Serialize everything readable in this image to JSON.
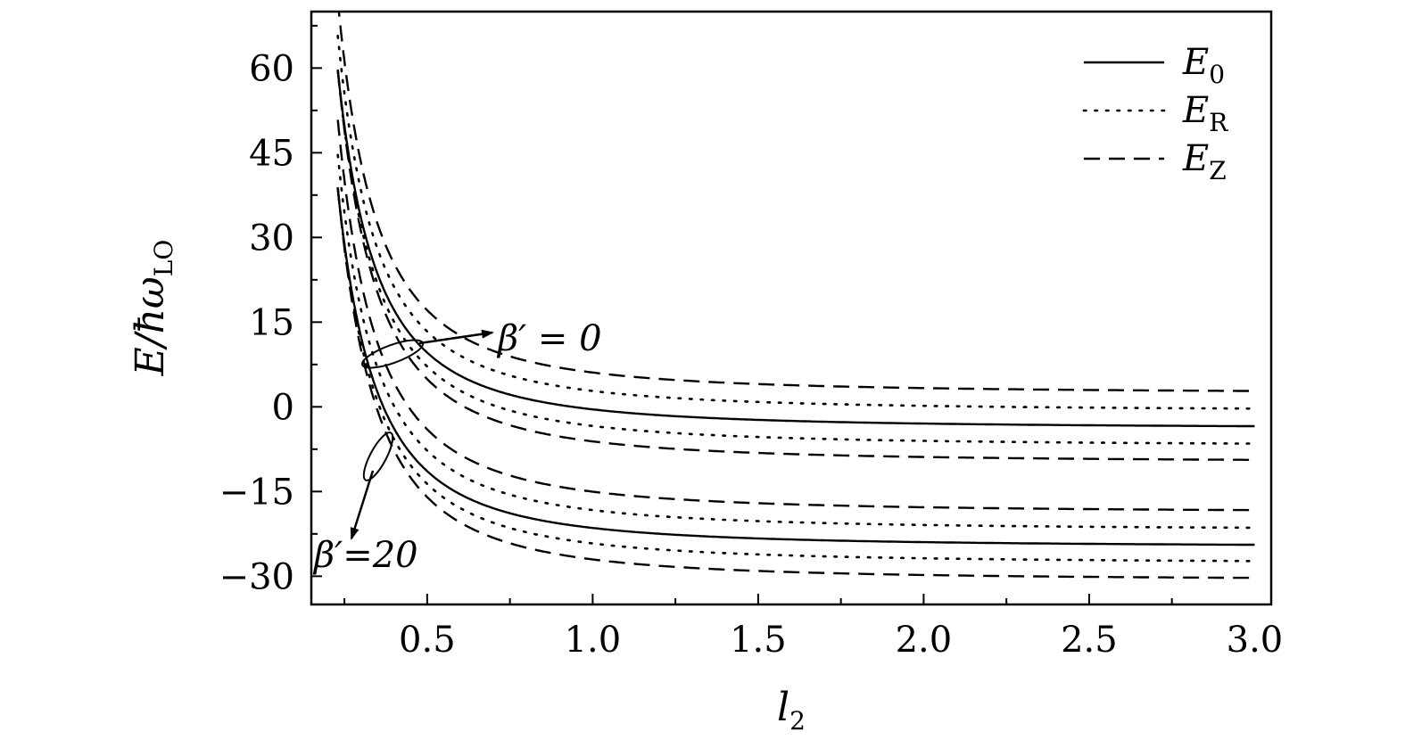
{
  "chart_data": {
    "type": "line",
    "xlabel": {
      "base": "l",
      "sub": "2"
    },
    "ylabel": {
      "base": "E/ħω",
      "sub": "LO"
    },
    "xlim": [
      0.15,
      3.05
    ],
    "ylim": [
      -35,
      70
    ],
    "xticks": [
      0.5,
      1.0,
      1.5,
      2.0,
      2.5,
      3.0
    ],
    "xtick_labels": [
      "0.5",
      "1.0",
      "1.5",
      "2.0",
      "2.5",
      "3.0"
    ],
    "yticks": [
      -30,
      -15,
      0,
      15,
      30,
      45,
      60
    ],
    "ytick_labels": [
      "−30",
      "−15",
      "0",
      "15",
      "30",
      "45",
      "60"
    ],
    "grid": false,
    "legend_position": "top-right",
    "legend": [
      {
        "base": "E",
        "sub": "0",
        "style": "solid"
      },
      {
        "base": "E",
        "sub": "R",
        "style": "dotted"
      },
      {
        "base": "E",
        "sub": "Z",
        "style": "dashed"
      }
    ],
    "annotations": [
      {
        "text": "β′ = 0",
        "target_x": 0.33,
        "target_y": 7
      },
      {
        "text": "β′=20",
        "target_x": 0.36,
        "target_y": -11
      }
    ],
    "curve_model": "E = asymptote + 0.76 × (amplitude / l2)^2, curves start at l2 = 0.23",
    "series": [
      {
        "group": "β′ = 0",
        "style": "dashed",
        "asymptote": 2.4,
        "amplitude": 2.2
      },
      {
        "group": "β′ = 0",
        "style": "dotted",
        "asymptote": -0.7,
        "amplitude": 2.15
      },
      {
        "group": "β′ = 0",
        "style": "solid",
        "asymptote": -3.8,
        "amplitude": 2.1
      },
      {
        "group": "β′ = 0",
        "style": "dotted",
        "asymptote": -6.9,
        "amplitude": 2.15
      },
      {
        "group": "β′ = 0",
        "style": "dashed",
        "asymptote": -9.8,
        "amplitude": 2.2
      },
      {
        "group": "β′=20",
        "style": "dashed",
        "asymptote": -18.7,
        "amplitude": 2.2
      },
      {
        "group": "β′=20",
        "style": "dotted",
        "asymptote": -21.8,
        "amplitude": 2.15
      },
      {
        "group": "β′=20",
        "style": "solid",
        "asymptote": -24.8,
        "amplitude": 2.1
      },
      {
        "group": "β′=20",
        "style": "dotted",
        "asymptote": -27.7,
        "amplitude": 2.15
      },
      {
        "group": "β′=20",
        "style": "dashed",
        "asymptote": -30.7,
        "amplitude": 2.2
      }
    ]
  }
}
